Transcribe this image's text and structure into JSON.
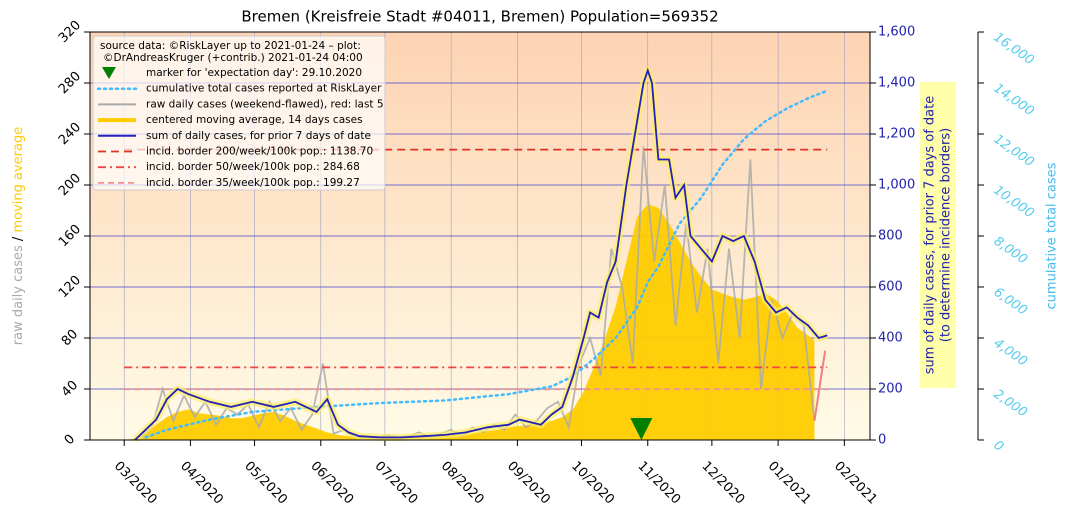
{
  "chart_data": {
    "type": "line",
    "title": "Bremen (Kreisfreie Stadt #04011, Bremen) Population=569352",
    "source": [
      "source data: ©RiskLayer up to 2021-01-24 – plot:",
      "©DrAndreasKruger (+contrib.) 2021-01-24 04:00"
    ],
    "ylabel": [
      "raw daily cases",
      "/",
      "moving average"
    ],
    "ylabel_colors": [
      "#aaaaaa",
      "#000000",
      "#ffcc00"
    ],
    "y2label": [
      "sum of daily cases, for prior 7 days of date",
      "(to determine incidence borders)"
    ],
    "y3label": "cumulative total cases",
    "xlim": [
      -16,
      349
    ],
    "xticks": [
      {
        "value": 0,
        "label": "03/2020"
      },
      {
        "value": 31,
        "label": "04/2020"
      },
      {
        "value": 61,
        "label": "05/2020"
      },
      {
        "value": 92,
        "label": "06/2020"
      },
      {
        "value": 122,
        "label": "07/2020"
      },
      {
        "value": 153,
        "label": "08/2020"
      },
      {
        "value": 184,
        "label": "09/2020"
      },
      {
        "value": 214,
        "label": "10/2020"
      },
      {
        "value": 245,
        "label": "11/2020"
      },
      {
        "value": 275,
        "label": "12/2020"
      },
      {
        "value": 306,
        "label": "01/2021"
      },
      {
        "value": 337,
        "label": "02/2021"
      }
    ],
    "ylim": [
      0,
      320
    ],
    "yticks": [
      0,
      40,
      80,
      120,
      160,
      200,
      240,
      280,
      320
    ],
    "y2lim": [
      0,
      1600
    ],
    "y2ticks": [
      0,
      200,
      400,
      600,
      800,
      {
        "value": 1000,
        "label": "1,000"
      },
      {
        "value": 1200,
        "label": "1,200"
      },
      {
        "value": 1400,
        "label": "1,400"
      },
      {
        "value": 1600,
        "label": "1,600"
      }
    ],
    "y3lim": [
      0,
      16000
    ],
    "y3ticks": [
      0,
      {
        "value": 2000,
        "label": "2,000"
      },
      {
        "value": 4000,
        "label": "4,000"
      },
      {
        "value": 6000,
        "label": "6,000"
      },
      {
        "value": 8000,
        "label": "8,000"
      },
      {
        "value": 10000,
        "label": "10,000"
      },
      {
        "value": 12000,
        "label": "12,000"
      },
      {
        "value": 14000,
        "label": "14,000"
      },
      {
        "value": 16000,
        "label": "16,000"
      }
    ],
    "grid": true,
    "marker": {
      "name": "marker for 'expectation day': 29.10.2020",
      "x": 242,
      "y": 0,
      "color": "#008000"
    },
    "series": [
      {
        "name": "cumulative total cases reported at RiskLayer",
        "style": "dotted",
        "axis": "y3",
        "color": "#44bbff",
        "x": [
          10,
          20,
          40,
          60,
          90,
          120,
          150,
          180,
          200,
          210,
          220,
          230,
          240,
          245,
          250,
          260,
          270,
          280,
          290,
          300,
          310,
          320,
          329
        ],
        "values": [
          100,
          400,
          800,
          1100,
          1300,
          1450,
          1550,
          1800,
          2100,
          2500,
          3200,
          4000,
          5200,
          6200,
          6800,
          8500,
          9500,
          10800,
          11800,
          12500,
          13000,
          13400,
          13700
        ]
      },
      {
        "name": "raw daily cases (weekend-flawed), red: last 5",
        "style": "raw",
        "axis": "y",
        "color": "#aaaaaa",
        "recent_color": "#f08080",
        "x": [
          8,
          13,
          18,
          23,
          28,
          33,
          38,
          43,
          48,
          53,
          58,
          63,
          68,
          73,
          78,
          83,
          88,
          93,
          98,
          103,
          108,
          113,
          118,
          123,
          128,
          133,
          138,
          143,
          148,
          153,
          158,
          163,
          168,
          173,
          178,
          183,
          188,
          193,
          198,
          203,
          208,
          213,
          218,
          223,
          228,
          233,
          238,
          243,
          248,
          253,
          258,
          263,
          268,
          273,
          278,
          283,
          288,
          293,
          298,
          303,
          308,
          313,
          318,
          323,
          328
        ],
        "values": [
          2,
          10,
          40,
          15,
          35,
          18,
          30,
          12,
          25,
          20,
          28,
          10,
          30,
          15,
          25,
          8,
          20,
          60,
          5,
          8,
          2,
          3,
          1,
          4,
          2,
          3,
          6,
          2,
          5,
          8,
          3,
          10,
          6,
          12,
          8,
          20,
          10,
          15,
          25,
          30,
          10,
          60,
          80,
          50,
          150,
          120,
          60,
          230,
          140,
          200,
          90,
          170,
          100,
          150,
          60,
          150,
          80,
          220,
          40,
          110,
          80,
          100,
          90,
          15,
          70
        ]
      },
      {
        "name": "centered moving average, 14 days cases",
        "style": "area",
        "axis": "y",
        "color": "#ffcc00",
        "x": [
          0,
          5,
          10,
          15,
          20,
          25,
          30,
          35,
          40,
          45,
          50,
          55,
          60,
          65,
          70,
          75,
          80,
          85,
          90,
          95,
          100,
          105,
          110,
          115,
          120,
          125,
          130,
          135,
          140,
          145,
          150,
          155,
          160,
          165,
          170,
          175,
          180,
          185,
          190,
          195,
          200,
          205,
          210,
          215,
          220,
          225,
          230,
          235,
          240,
          245,
          250,
          255,
          260,
          265,
          270,
          275,
          280,
          285,
          290,
          295,
          300,
          305,
          310,
          315,
          320,
          323
        ],
        "values": [
          0,
          1,
          5,
          12,
          18,
          22,
          24,
          21,
          20,
          19,
          17,
          17,
          19,
          21,
          22,
          19,
          15,
          12,
          9,
          6,
          4,
          3,
          2,
          2,
          2,
          2,
          2,
          3,
          3,
          3,
          4,
          4,
          5,
          6,
          7,
          8,
          10,
          11,
          12,
          13,
          15,
          18,
          24,
          38,
          58,
          80,
          105,
          140,
          175,
          185,
          182,
          170,
          155,
          140,
          128,
          118,
          115,
          112,
          110,
          112,
          115,
          110,
          100,
          88,
          82,
          78
        ]
      },
      {
        "name": "sum of daily cases, for prior 7 days of date",
        "style": "halo",
        "axis": "y2",
        "color": "#2222bb",
        "x": [
          5,
          10,
          15,
          20,
          25,
          30,
          40,
          50,
          60,
          70,
          80,
          90,
          95,
          100,
          105,
          110,
          120,
          130,
          140,
          150,
          160,
          170,
          180,
          185,
          190,
          195,
          200,
          205,
          210,
          215,
          218,
          222,
          226,
          230,
          235,
          240,
          243,
          245,
          247,
          250,
          255,
          258,
          262,
          265,
          270,
          275,
          280,
          285,
          290,
          295,
          300,
          305,
          310,
          315,
          320,
          325,
          329
        ],
        "values": [
          0,
          40,
          80,
          160,
          200,
          180,
          150,
          130,
          150,
          130,
          150,
          110,
          160,
          60,
          30,
          15,
          10,
          10,
          15,
          20,
          30,
          50,
          60,
          80,
          70,
          60,
          100,
          130,
          250,
          400,
          500,
          480,
          620,
          700,
          1000,
          1250,
          1400,
          1450,
          1400,
          1100,
          1100,
          950,
          1000,
          800,
          750,
          700,
          800,
          780,
          800,
          700,
          550,
          500,
          520,
          480,
          450,
          400,
          410
        ]
      }
    ],
    "hlines": [
      {
        "name": "incid. border 200/week/100k pop.: 1138.70",
        "value": 1138.7,
        "x": [
          0,
          329
        ],
        "color": "#dd3322",
        "dash": "8,5"
      },
      {
        "name": "incid. border 50/week/100k pop.: 284.68",
        "value": 284.68,
        "x": [
          0,
          329
        ],
        "color": "#ee4444",
        "dash": "8,4,2,4"
      },
      {
        "name": "incid. border 35/week/100k pop.: 199.27",
        "value": 199.27,
        "x": [
          0,
          329
        ],
        "color": "#f09090",
        "dash": "6,4"
      }
    ]
  }
}
